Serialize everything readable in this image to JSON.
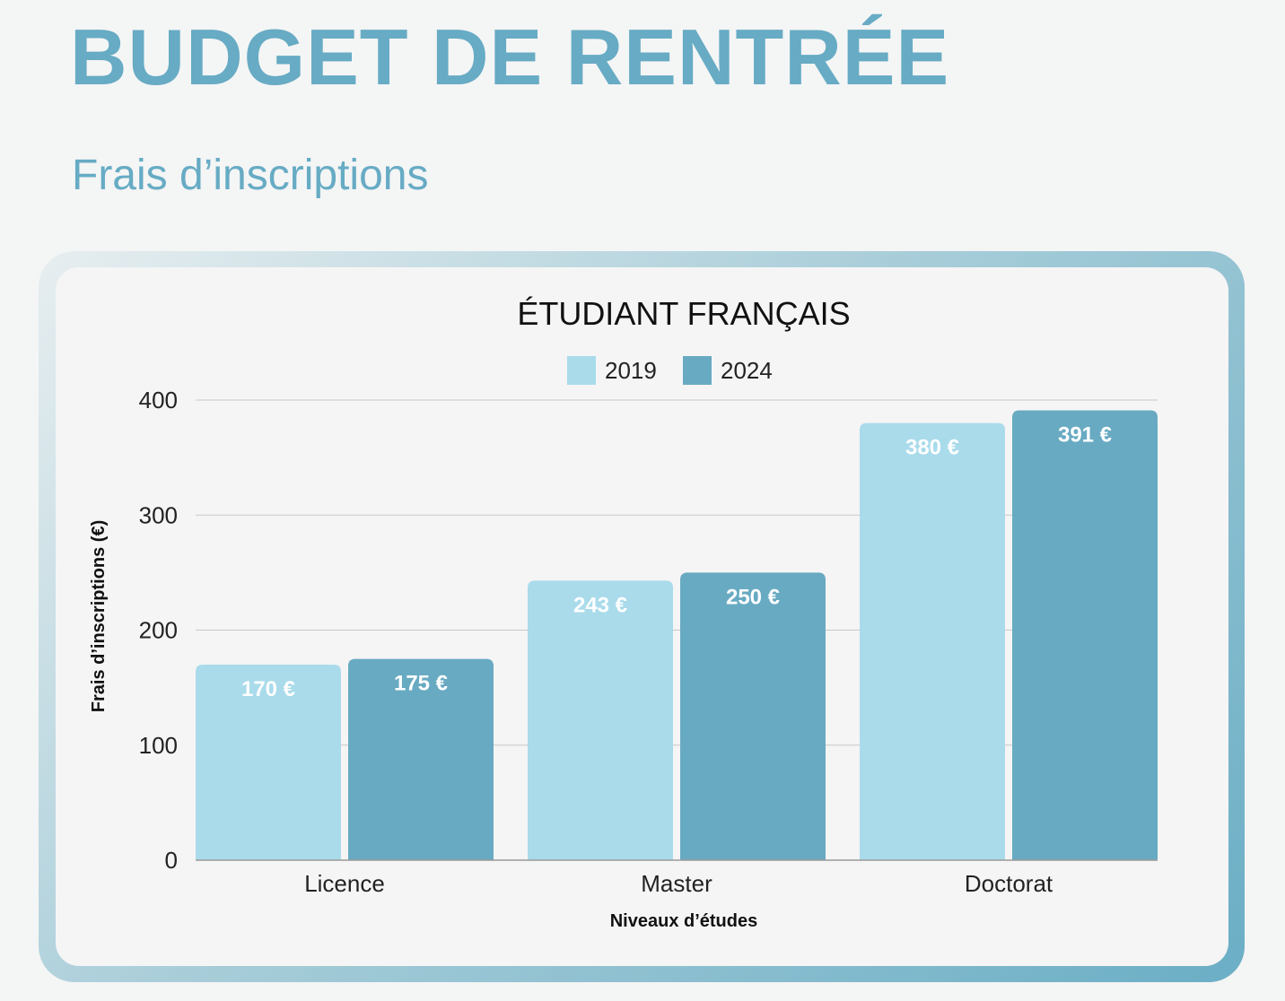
{
  "page": {
    "title": "BUDGET DE RENTRÉE",
    "subtitle": "Frais d’inscriptions"
  },
  "colors": {
    "heading": "#67abc4",
    "series_2019": "#a9dbeb",
    "series_2024": "#68aac2",
    "grid": "#c8c8c8",
    "card_background": "#f5f5f5",
    "page_background": "#f4f5f5"
  },
  "chart_data": {
    "type": "bar",
    "title": "ÉTUDIANT FRANÇAIS",
    "xlabel": "Niveaux d’études",
    "ylabel": "Frais d’inscriptions (€)",
    "categories": [
      "Licence",
      "Master",
      "Doctorat"
    ],
    "series": [
      {
        "name": "2019",
        "values": [
          170,
          243,
          380
        ],
        "labels": [
          "170 €",
          "243 €",
          "380 €"
        ],
        "color": "#a9dbeb"
      },
      {
        "name": "2024",
        "values": [
          175,
          250,
          391
        ],
        "labels": [
          "175 €",
          "250 €",
          "391 €"
        ],
        "color": "#68aac2"
      }
    ],
    "ylim": [
      0,
      400
    ],
    "yticks": [
      0,
      100,
      200,
      300,
      400
    ],
    "grid": true,
    "legend_position": "top-center"
  }
}
